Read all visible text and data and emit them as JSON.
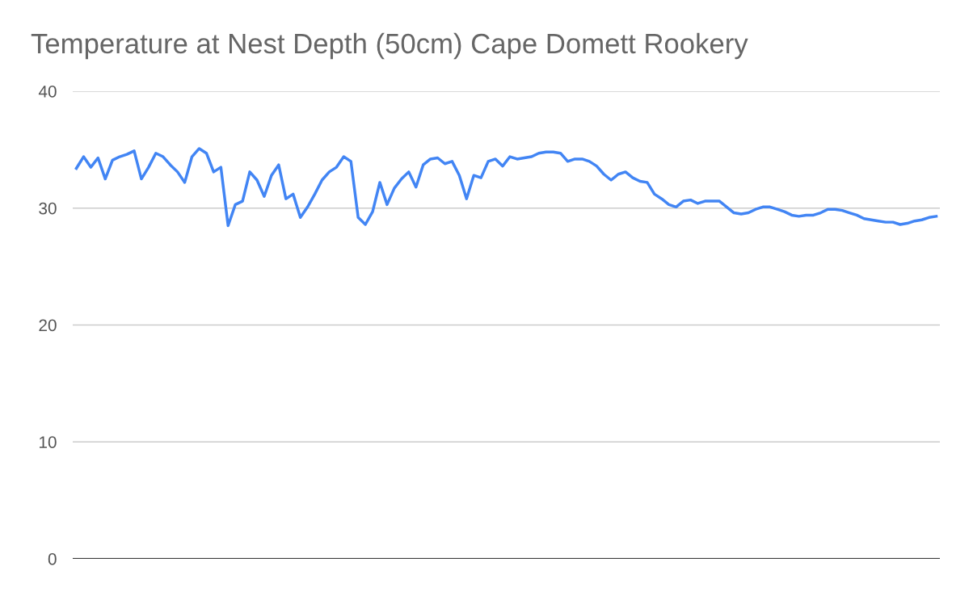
{
  "chart_data": {
    "type": "line",
    "title": "Temperature at Nest Depth (50cm) Cape Domett Rookery",
    "categories": [
      null,
      null,
      null,
      null,
      null,
      null,
      null,
      null,
      null,
      null,
      null,
      null,
      null,
      null,
      null,
      null,
      null,
      null,
      null,
      null,
      null,
      null,
      null,
      null,
      null,
      null,
      null,
      null,
      null,
      null,
      null,
      null,
      null,
      null,
      null,
      null,
      null,
      null,
      null,
      null,
      null,
      null,
      null,
      null,
      null,
      null,
      null,
      null,
      null,
      null,
      null,
      null,
      null,
      null,
      null,
      null,
      null,
      null,
      null,
      null,
      null,
      null,
      null,
      null,
      null,
      null,
      null,
      null,
      null,
      null,
      null,
      null,
      null,
      null,
      null,
      null,
      null,
      null,
      null,
      null,
      null,
      null,
      null,
      null,
      null,
      null,
      null,
      null,
      null,
      null,
      null,
      null,
      null,
      null,
      null,
      null,
      null,
      null,
      null,
      null,
      null,
      null,
      null,
      null,
      null,
      null,
      null,
      null,
      null,
      null,
      null,
      null,
      null,
      null,
      null,
      null,
      null,
      null,
      null,
      null
    ],
    "series": [
      {
        "color": "#4285f4",
        "values": [
          33.4,
          34.4,
          33.5,
          34.3,
          32.5,
          34.1,
          34.4,
          34.6,
          34.9,
          32.5,
          33.5,
          34.7,
          34.4,
          33.7,
          33.1,
          32.2,
          34.4,
          35.1,
          34.7,
          33.1,
          33.5,
          28.5,
          30.3,
          30.6,
          33.1,
          32.4,
          31.0,
          32.8,
          33.7,
          30.8,
          31.2,
          29.2,
          30.1,
          31.2,
          32.4,
          33.1,
          33.5,
          34.4,
          34.0,
          29.2,
          28.6,
          29.7,
          32.2,
          30.3,
          31.7,
          32.5,
          33.1,
          31.8,
          33.7,
          34.2,
          34.3,
          33.8,
          34.0,
          32.8,
          30.8,
          32.8,
          32.6,
          34.0,
          34.2,
          33.6,
          34.4,
          34.2,
          34.3,
          34.4,
          34.7,
          34.8,
          34.8,
          34.7,
          34.0,
          34.2,
          34.2,
          34.0,
          33.6,
          32.9,
          32.4,
          32.9,
          33.1,
          32.6,
          32.3,
          32.2,
          31.2,
          30.8,
          30.3,
          30.1,
          30.6,
          30.7,
          30.4,
          30.6,
          30.6,
          30.6,
          30.1,
          29.6,
          29.5,
          29.6,
          29.9,
          30.1,
          30.1,
          29.9,
          29.7,
          29.4,
          29.3,
          29.4,
          29.4,
          29.6,
          29.9,
          29.9,
          29.8,
          29.6,
          29.4,
          29.1,
          29.0,
          28.9,
          28.8,
          28.8,
          28.6,
          28.7,
          28.9,
          29.0,
          29.2,
          29.3
        ]
      }
    ],
    "ylim": [
      0,
      40
    ],
    "yticks": [
      0,
      10,
      20,
      30,
      40
    ],
    "grid": "y",
    "legend": false,
    "marker": "none",
    "line_style": "solid",
    "ref_lines": [
      {
        "axis": "y",
        "value": 0,
        "color": "#333333",
        "line_style": "solid"
      }
    ]
  }
}
